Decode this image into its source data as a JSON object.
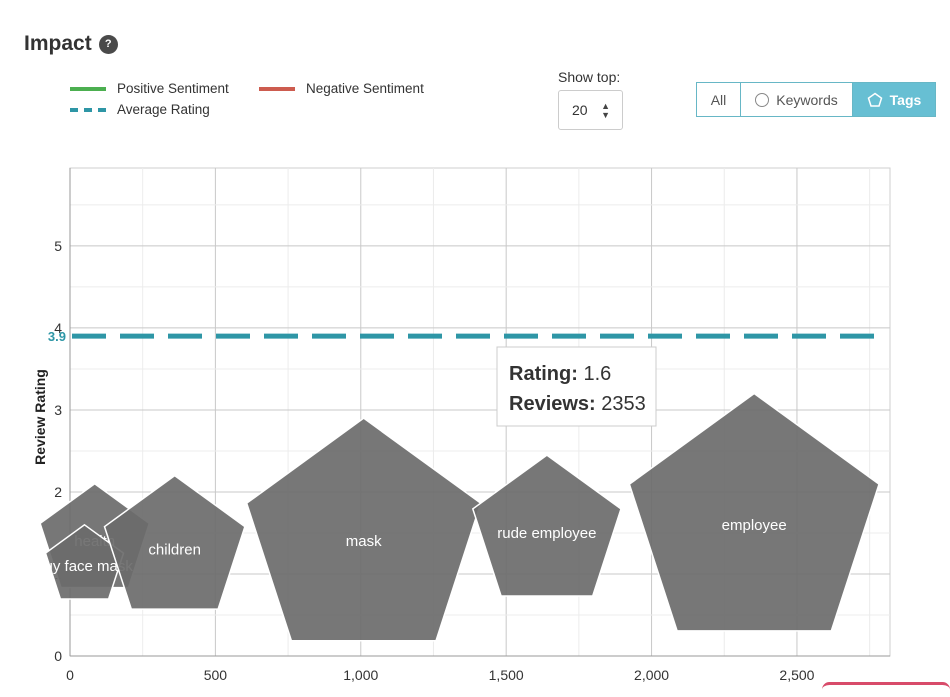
{
  "header": {
    "title": "Impact",
    "help_icon": "?"
  },
  "legend": {
    "positive": "Positive Sentiment",
    "negative": "Negative Sentiment",
    "average": "Average Rating"
  },
  "show_top": {
    "label": "Show top:",
    "value": "20"
  },
  "filters": {
    "all": "All",
    "keywords": "Keywords",
    "tags": "Tags",
    "active": "Tags"
  },
  "tooltip": {
    "rating_label": "Rating:",
    "rating_value": "1.6",
    "reviews_label": "Reviews:",
    "reviews_value": "2353"
  },
  "colors": {
    "positive": "#4caf50",
    "negative": "#cd5c4f",
    "average": "#2e96a6",
    "bubble": "#6b6b6b",
    "accent": "#67bfd3"
  },
  "chart_data": {
    "type": "scatter",
    "marker": "pentagon",
    "xlabel": "",
    "ylabel": "Review Rating",
    "xlim": [
      0,
      2820
    ],
    "ylim": [
      0,
      5.95
    ],
    "x_ticks": [
      0,
      500,
      1000,
      1500,
      2000,
      2500
    ],
    "x_tick_labels": [
      "0",
      "500",
      "1,000",
      "1,500",
      "2,000",
      "2,500"
    ],
    "y_ticks": [
      0,
      1,
      2,
      3,
      4,
      5
    ],
    "y_tick_labels": [
      "0",
      "1",
      "2",
      "3",
      "4",
      "5"
    ],
    "average_rating": 3.9,
    "average_label": "3.9",
    "grid": true,
    "points": [
      {
        "name": "health",
        "x": 85,
        "rating": 1.4,
        "r": 0.7
      },
      {
        "name": "buy face mask",
        "x": 50,
        "rating": 1.1,
        "r": 0.5
      },
      {
        "name": "children",
        "x": 360,
        "rating": 1.3,
        "r": 0.9
      },
      {
        "name": "mask",
        "x": 1010,
        "rating": 1.4,
        "r": 1.5
      },
      {
        "name": "rude employee",
        "x": 1640,
        "rating": 1.5,
        "r": 0.95
      },
      {
        "name": "employee",
        "x": 2353,
        "rating": 1.6,
        "r": 1.6
      }
    ]
  }
}
